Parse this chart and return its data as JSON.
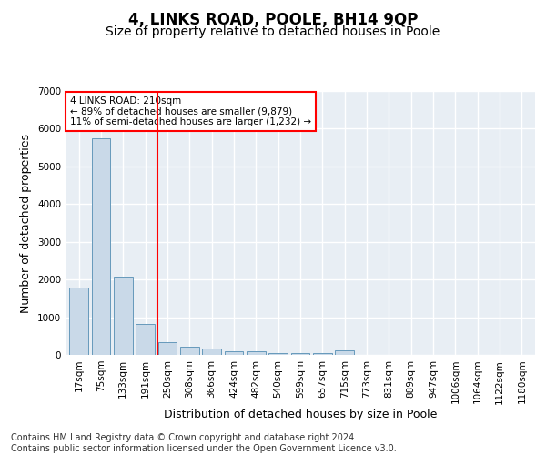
{
  "title": "4, LINKS ROAD, POOLE, BH14 9QP",
  "subtitle": "Size of property relative to detached houses in Poole",
  "xlabel": "Distribution of detached houses by size in Poole",
  "ylabel": "Number of detached properties",
  "bar_labels": [
    "17sqm",
    "75sqm",
    "133sqm",
    "191sqm",
    "250sqm",
    "308sqm",
    "366sqm",
    "424sqm",
    "482sqm",
    "540sqm",
    "599sqm",
    "657sqm",
    "715sqm",
    "773sqm",
    "831sqm",
    "889sqm",
    "947sqm",
    "1006sqm",
    "1064sqm",
    "1122sqm",
    "1180sqm"
  ],
  "bar_values": [
    1780,
    5750,
    2080,
    820,
    350,
    210,
    160,
    105,
    90,
    60,
    55,
    50,
    110,
    0,
    0,
    0,
    0,
    0,
    0,
    0,
    0
  ],
  "bar_color": "#c9d9e8",
  "bar_edge_color": "#6699bb",
  "red_line_x": 3.57,
  "annotation_text": "4 LINKS ROAD: 210sqm\n← 89% of detached houses are smaller (9,879)\n11% of semi-detached houses are larger (1,232) →",
  "annotation_box_color": "white",
  "annotation_box_edge": "red",
  "ylim": [
    0,
    7000
  ],
  "yticks": [
    0,
    1000,
    2000,
    3000,
    4000,
    5000,
    6000,
    7000
  ],
  "footer_text": "Contains HM Land Registry data © Crown copyright and database right 2024.\nContains public sector information licensed under the Open Government Licence v3.0.",
  "plot_bg_color": "#e8eef4",
  "grid_color": "white",
  "title_fontsize": 12,
  "subtitle_fontsize": 10,
  "xlabel_fontsize": 9,
  "ylabel_fontsize": 9,
  "tick_fontsize": 7.5,
  "footer_fontsize": 7
}
